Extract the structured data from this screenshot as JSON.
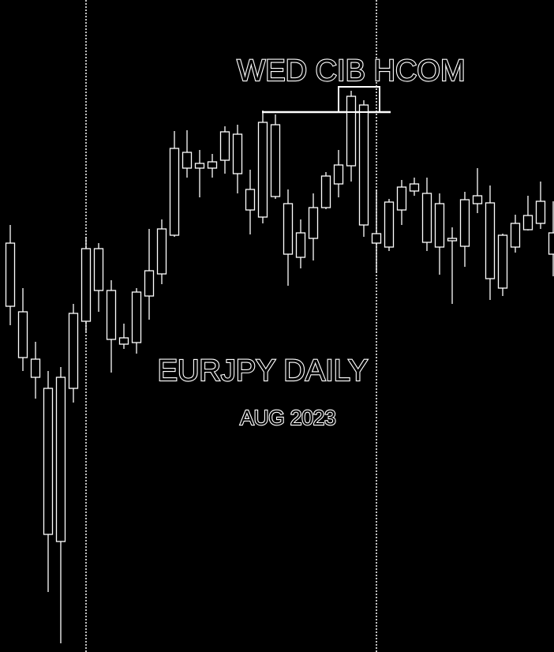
{
  "chart_data": {
    "type": "candlestick",
    "title": "EURJPY DAILY",
    "subtitle": "AUG 2023",
    "annotation": "WED CIB HCOM",
    "categories": [
      null,
      null,
      null,
      null,
      null,
      null,
      null,
      null,
      null,
      null,
      null,
      null,
      null,
      null,
      null,
      null,
      null,
      null,
      null,
      null,
      null,
      null,
      null,
      null,
      null,
      null,
      null,
      null,
      null,
      null,
      null,
      null,
      null,
      null,
      null,
      null,
      null,
      null,
      null,
      null,
      null,
      null,
      null,
      null
    ],
    "open": [
      518,
      431,
      371,
      334,
      140,
      334,
      419,
      511,
      458,
      390,
      392,
      451,
      479,
      528,
      633,
      619,
      613,
      623,
      656,
      586,
      551,
      668,
      568,
      531,
      524,
      563,
      593,
      616,
      693,
      530,
      513,
      560,
      593,
      581,
      568,
      521,
      514,
      578,
      569,
      461,
      513,
      535,
      543,
      531
    ],
    "high": [
      541,
      461,
      393,
      356,
      361,
      441,
      526,
      518,
      471,
      416,
      461,
      536,
      548,
      660,
      661,
      636,
      631,
      666,
      668,
      611,
      686,
      681,
      586,
      548,
      581,
      608,
      636,
      711,
      699,
      586,
      574,
      598,
      601,
      601,
      581,
      538,
      583,
      613,
      591,
      530,
      554,
      578,
      596,
      571
    ],
    "low": [
      414,
      356,
      321,
      76,
      11,
      316,
      406,
      431,
      354,
      384,
      378,
      421,
      466,
      526,
      601,
      576,
      601,
      606,
      581,
      529,
      543,
      574,
      464,
      486,
      496,
      561,
      576,
      596,
      526,
      481,
      508,
      541,
      578,
      508,
      478,
      441,
      488,
      556,
      446,
      451,
      506,
      534,
      536,
      476
    ],
    "close": [
      438,
      373,
      348,
      149,
      348,
      429,
      511,
      458,
      396,
      398,
      456,
      483,
      536,
      638,
      613,
      613,
      621,
      659,
      606,
      560,
      671,
      577,
      504,
      500,
      563,
      603,
      617,
      704,
      541,
      518,
      570,
      589,
      584,
      519,
      513,
      524,
      573,
      568,
      473,
      528,
      543,
      553,
      571,
      504
    ],
    "color": "#ffffff",
    "ylim": [
      0,
      826
    ],
    "level": 684,
    "vline_categories": [
      6,
      29
    ]
  }
}
